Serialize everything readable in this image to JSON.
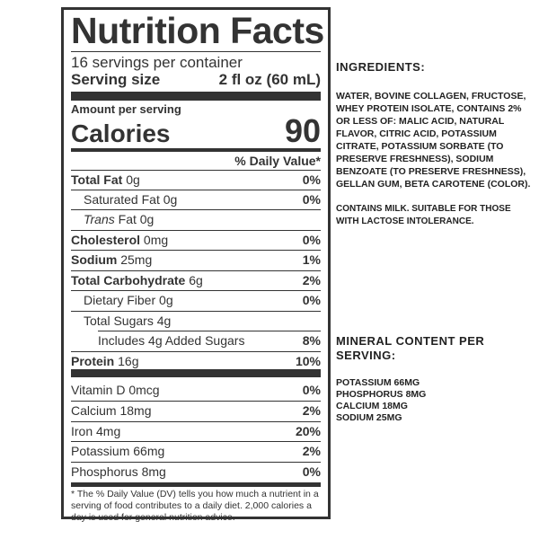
{
  "label": {
    "title": "Nutrition Facts",
    "servings": "16 servings per container",
    "serving_size_label": "Serving size",
    "serving_size_value": "2 fl oz (60 mL)",
    "amount_per_serving": "Amount per serving",
    "calories_label": "Calories",
    "calories_value": "90",
    "dv_header": "% Daily Value*",
    "nutrients": [
      {
        "name": "Total Fat",
        "amount": "0g",
        "dv": "0%"
      },
      {
        "name": "Saturated Fat",
        "amount": "0g",
        "dv": "0%"
      },
      {
        "name": "Trans",
        "amount": "Fat 0g",
        "dv": ""
      },
      {
        "name": "Cholesterol",
        "amount": "0mg",
        "dv": "0%"
      },
      {
        "name": "Sodium",
        "amount": "25mg",
        "dv": "1%"
      },
      {
        "name": "Total Carbohydrate",
        "amount": "6g",
        "dv": "2%"
      },
      {
        "name": "Dietary Fiber",
        "amount": "0g",
        "dv": "0%"
      },
      {
        "name": "Total Sugars",
        "amount": "4g",
        "dv": ""
      },
      {
        "name": "Includes 4g Added Sugars",
        "amount": "",
        "dv": "8%"
      },
      {
        "name": "Protein",
        "amount": "16g",
        "dv": "10%"
      }
    ],
    "minerals": [
      {
        "name": "Vitamin D",
        "amount": "0mcg",
        "dv": "0%"
      },
      {
        "name": "Calcium",
        "amount": "18mg",
        "dv": "2%"
      },
      {
        "name": "Iron",
        "amount": "4mg",
        "dv": "20%"
      },
      {
        "name": "Potassium",
        "amount": "66mg",
        "dv": "2%"
      },
      {
        "name": "Phosphorus",
        "amount": "8mg",
        "dv": "0%"
      }
    ],
    "footnote": "* The % Daily Value (DV) tells you how much a nutrient in a serving of food contributes to a daily diet. 2,000 calories a day is used for general nutrition advice."
  },
  "ingredients": {
    "heading": "INGREDIENTS:",
    "text": "WATER, BOVINE COLLAGEN, FRUCTOSE, WHEY PROTEIN ISOLATE, CONTAINS 2% OR LESS OF: MALIC ACID, NATURAL FLAVOR, CITRIC ACID, POTASSIUM CITRATE, POTASSIUM SORBATE (TO PRESERVE FRESHNESS), SODIUM BENZOATE (TO PRESERVE FRESHNESS), GELLAN GUM, BETA CAROTENE (COLOR).",
    "allergen": "CONTAINS MILK. SUITABLE FOR THOSE WITH LACTOSE INTOLERANCE."
  },
  "mineral_content": {
    "heading": "MINERAL CONTENT PER SERVING:",
    "items": [
      "POTASSIUM 66MG",
      "PHOSPHORUS 8MG",
      "CALCIUM 18MG",
      "SODIUM 25MG"
    ]
  }
}
